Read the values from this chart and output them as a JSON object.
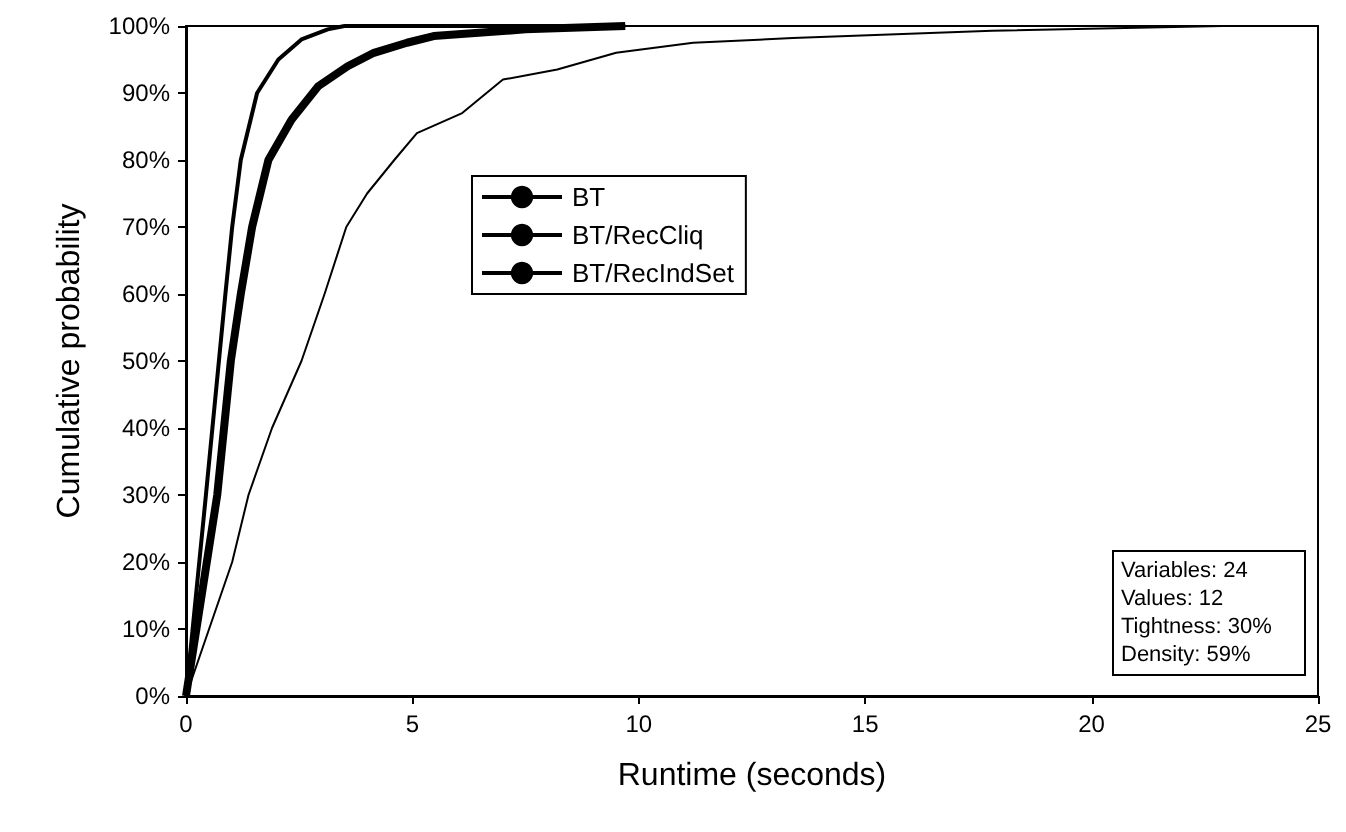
{
  "chart_data": {
    "type": "line",
    "xlabel": "Runtime (seconds)",
    "ylabel": "Cumulative probability",
    "xlim": [
      0,
      25
    ],
    "xticks": [
      0,
      5,
      10,
      15,
      20,
      25
    ],
    "ylim": [
      0,
      100
    ],
    "yticks": [
      {
        "value": 0,
        "label": "0%"
      },
      {
        "value": 10,
        "label": "10%"
      },
      {
        "value": 20,
        "label": "20%"
      },
      {
        "value": 30,
        "label": "30%"
      },
      {
        "value": 40,
        "label": "40%"
      },
      {
        "value": 50,
        "label": "50%"
      },
      {
        "value": 60,
        "label": "60%"
      },
      {
        "value": 70,
        "label": "70%"
      },
      {
        "value": 80,
        "label": "80%"
      },
      {
        "value": 90,
        "label": "90%"
      },
      {
        "value": 100,
        "label": "100%"
      }
    ],
    "grid": false,
    "legend": "left",
    "marker": "none",
    "line_style": "solid",
    "annotations": [
      "Variables: 24",
      "Values: 12",
      "Tightness: 30%",
      "Density: 59%"
    ],
    "series": [
      {
        "name": "BT",
        "color": "#000000",
        "x": [
          0,
          0.44,
          0.87,
          1.02,
          1.21,
          1.57,
          2.04,
          2.55,
          3.13,
          3.5,
          9.7
        ],
        "values": [
          0,
          30,
          60,
          70,
          80,
          90,
          95,
          98,
          99.5,
          100,
          100
        ]
      },
      {
        "name": "BT/RecCliq",
        "color": "#000000",
        "x": [
          0,
          0.69,
          0.99,
          1.21,
          1.46,
          1.82,
          2.33,
          2.92,
          3.57,
          4.15,
          4.88,
          5.47,
          7.5,
          9.7
        ],
        "values": [
          0,
          30,
          50,
          60,
          70,
          80,
          86,
          91,
          94,
          96,
          97.5,
          98.5,
          99.5,
          100
        ]
      },
      {
        "name": "BT/RecIndSet",
        "color": "#000000",
        "x": [
          0,
          1.02,
          1.38,
          1.9,
          2.55,
          3.06,
          3.54,
          4.0,
          4.6,
          5.1,
          6.1,
          7.0,
          8.2,
          9.5,
          11.2,
          13.4,
          17.8,
          22.9
        ],
        "values": [
          0,
          20,
          30,
          40,
          50,
          60,
          70,
          75,
          80,
          84,
          87,
          92,
          93.5,
          96,
          97.5,
          98.2,
          99.3,
          100
        ]
      }
    ]
  }
}
